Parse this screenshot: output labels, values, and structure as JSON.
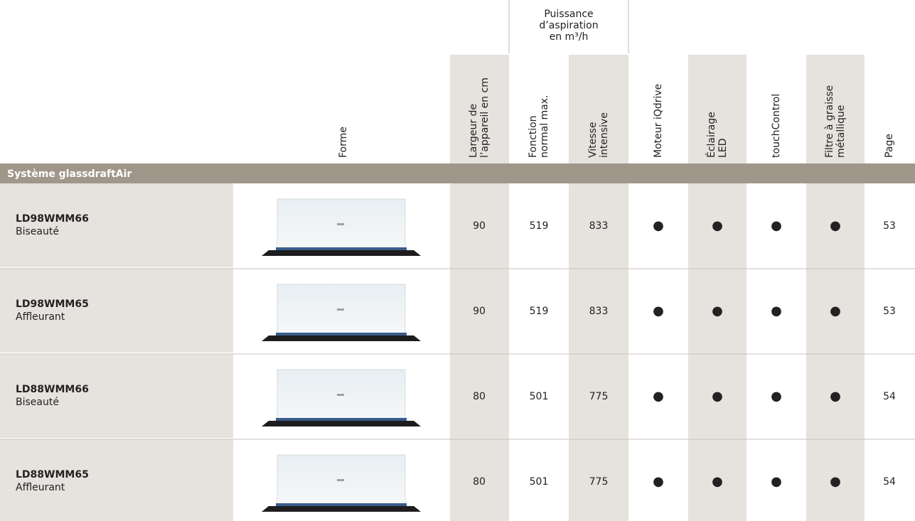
{
  "group_header": [
    "Puissance",
    "d’aspiration",
    "en m³/h"
  ],
  "columns": [
    [
      "Forme"
    ],
    [
      "Largeur de",
      "l’appareil en cm"
    ],
    [
      "Fonction",
      "normal max."
    ],
    [
      "Vitesse",
      "intensive"
    ],
    [
      "Moteur iQdrive"
    ],
    [
      "Éclairage",
      "LED"
    ],
    [
      "touchControl"
    ],
    [
      "Filtre à graisse",
      "métallique"
    ],
    [
      "Page"
    ]
  ],
  "section": "Système glassdraftAir",
  "rows": [
    {
      "model": "LD98WMM66",
      "variant": "Biseauté",
      "values": [
        90,
        519,
        833,
        "●",
        "●",
        "●",
        "●",
        53
      ]
    },
    {
      "model": "LD98WMM65",
      "variant": "Affleurant",
      "values": [
        90,
        519,
        833,
        "●",
        "●",
        "●",
        "●",
        53
      ]
    },
    {
      "model": "LD88WMM66",
      "variant": "Biseauté",
      "values": [
        80,
        501,
        775,
        "●",
        "●",
        "●",
        "●",
        54
      ]
    },
    {
      "model": "LD88WMM65",
      "variant": "Affleurant",
      "values": [
        80,
        501,
        775,
        "●",
        "●",
        "●",
        "●",
        54
      ]
    }
  ]
}
